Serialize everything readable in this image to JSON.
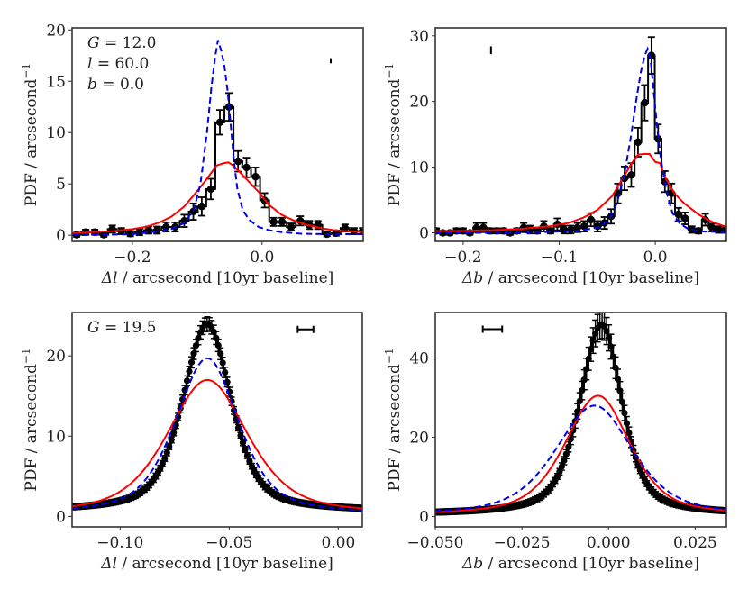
{
  "chart_data": [
    {
      "id": "top-left",
      "type": "line",
      "xlabel_sym": "Δl",
      "xlabel_rest": " / arcsecond [10yr baseline]",
      "ylabel": "PDF / arcsecond",
      "ylabel_sup": "−1",
      "xlim": [
        -0.293,
        0.156
      ],
      "ylim": [
        -0.6,
        20.2
      ],
      "xticks": [
        -0.2,
        0.0
      ],
      "xtick_labels": [
        "−0.2",
        "0.0"
      ],
      "yticks": [
        0,
        5,
        10,
        15,
        20
      ],
      "ytick_labels": [
        "0",
        "5",
        "10",
        "15",
        "20"
      ],
      "annotations": [
        {
          "sym": "G",
          "rest": " = 12.0"
        },
        {
          "sym": "l",
          "rest": " = 60.0"
        },
        {
          "sym": "b",
          "rest": " = 0.0"
        }
      ],
      "scale_bar": {
        "orientation": "vertical",
        "x": 0.106,
        "y_center": 17.0,
        "half_length": 0.25
      },
      "series": [
        {
          "name": "data histogram",
          "style": "step-errorbar",
          "color": "#000000",
          "bin_width": 0.0138,
          "x": [
            -0.286,
            -0.272,
            -0.258,
            -0.244,
            -0.231,
            -0.217,
            -0.203,
            -0.189,
            -0.175,
            -0.162,
            -0.148,
            -0.134,
            -0.12,
            -0.106,
            -0.093,
            -0.079,
            -0.065,
            -0.051,
            -0.037,
            -0.024,
            -0.01,
            0.004,
            0.018,
            0.031,
            0.045,
            0.059,
            0.073,
            0.086,
            0.1,
            0.114,
            0.128,
            0.142,
            0.155
          ],
          "y": [
            0.05,
            0.3,
            0.3,
            0.05,
            0.6,
            0.4,
            0.15,
            0.3,
            0.5,
            0.5,
            0.8,
            0.8,
            1.4,
            2.3,
            2.8,
            4.5,
            11.0,
            12.5,
            7.2,
            6.6,
            5.7,
            3.4,
            1.3,
            1.3,
            0.8,
            1.4,
            1.0,
            1.0,
            0.1,
            0.2,
            0.7,
            0.4,
            0.4
          ],
          "err": [
            0.2,
            0.25,
            0.25,
            0.2,
            0.35,
            0.3,
            0.25,
            0.3,
            0.35,
            0.35,
            0.45,
            0.45,
            0.6,
            0.8,
            0.9,
            1.0,
            1.2,
            1.35,
            1.0,
            0.95,
            0.9,
            0.7,
            0.4,
            0.4,
            0.35,
            0.45,
            0.4,
            0.4,
            0.2,
            0.25,
            0.35,
            0.3,
            0.3
          ]
        },
        {
          "name": "model (red)",
          "style": "solid",
          "color": "#ff0000",
          "x": [
            -0.293,
            -0.26,
            -0.23,
            -0.2,
            -0.18,
            -0.16,
            -0.14,
            -0.12,
            -0.1,
            -0.085,
            -0.07,
            -0.06,
            -0.052,
            -0.045,
            -0.035,
            -0.02,
            -0.005,
            0.01,
            0.03,
            0.05,
            0.07,
            0.09,
            0.11,
            0.13,
            0.156
          ],
          "y": [
            0.2,
            0.3,
            0.4,
            0.6,
            0.8,
            1.2,
            1.8,
            2.8,
            4.3,
            5.5,
            6.8,
            7.0,
            7.1,
            6.8,
            6.2,
            5.2,
            4.2,
            3.0,
            2.0,
            1.4,
            1.0,
            0.7,
            0.5,
            0.4,
            0.3
          ]
        },
        {
          "name": "model (blue dashed)",
          "style": "dashed",
          "color": "#0000ee",
          "x": [
            -0.293,
            -0.25,
            -0.2,
            -0.17,
            -0.14,
            -0.12,
            -0.105,
            -0.095,
            -0.085,
            -0.078,
            -0.072,
            -0.068,
            -0.063,
            -0.058,
            -0.053,
            -0.048,
            -0.043,
            -0.038,
            -0.03,
            -0.02,
            -0.005,
            0.01,
            0.03,
            0.06,
            0.1,
            0.156
          ],
          "y": [
            0.0,
            0.05,
            0.1,
            0.3,
            0.6,
            1.2,
            2.5,
            5.0,
            10.0,
            14.5,
            17.5,
            19.0,
            18.0,
            16.5,
            14.0,
            10.5,
            7.0,
            4.5,
            2.5,
            1.5,
            0.8,
            0.5,
            0.3,
            0.15,
            0.1,
            0.1
          ]
        }
      ]
    },
    {
      "id": "top-right",
      "type": "line",
      "xlabel_sym": "Δb",
      "xlabel_rest": " / arcsecond [10yr baseline]",
      "ylabel": "PDF / arcsecond",
      "ylabel_sup": "−1",
      "xlim": [
        -0.229,
        0.074
      ],
      "ylim": [
        -1.3,
        31.2
      ],
      "xticks": [
        -0.2,
        -0.1,
        0.0
      ],
      "xtick_labels": [
        "−0.2",
        "−0.1",
        "0.0"
      ],
      "yticks": [
        0,
        10,
        20,
        30
      ],
      "ytick_labels": [
        "0",
        "10",
        "20",
        "30"
      ],
      "annotations": [],
      "scale_bar": {
        "orientation": "vertical",
        "x": -0.171,
        "y_center": 27.8,
        "half_length": 0.6
      },
      "series": [
        {
          "name": "data histogram",
          "style": "step-errorbar",
          "color": "#000000",
          "bin_width": 0.0069,
          "x": [
            -0.228,
            -0.221,
            -0.214,
            -0.207,
            -0.2,
            -0.193,
            -0.186,
            -0.179,
            -0.172,
            -0.165,
            -0.158,
            -0.151,
            -0.144,
            -0.137,
            -0.13,
            -0.123,
            -0.116,
            -0.109,
            -0.102,
            -0.095,
            -0.088,
            -0.081,
            -0.074,
            -0.067,
            -0.06,
            -0.053,
            -0.046,
            -0.039,
            -0.032,
            -0.025,
            -0.018,
            -0.011,
            -0.004,
            0.003,
            0.01,
            0.017,
            0.024,
            0.031,
            0.038,
            0.045,
            0.052,
            0.059,
            0.066,
            0.073
          ],
          "y": [
            0.3,
            0.0,
            0.0,
            0.3,
            0.3,
            0.0,
            0.8,
            0.8,
            0.3,
            0.3,
            0.3,
            0.0,
            0.3,
            0.8,
            0.5,
            0.3,
            1.0,
            0.3,
            1.3,
            0.5,
            0.5,
            0.8,
            1.0,
            2.0,
            1.0,
            1.5,
            2.5,
            6.0,
            8.3,
            8.8,
            13.8,
            19.8,
            27.0,
            14.3,
            7.8,
            6.0,
            2.8,
            2.2,
            0.5,
            0.3,
            2.0,
            0.8,
            0.5,
            0.5
          ],
          "err": [
            0.4,
            0.3,
            0.3,
            0.4,
            0.4,
            0.3,
            0.7,
            0.7,
            0.4,
            0.4,
            0.4,
            0.3,
            0.4,
            0.7,
            0.6,
            0.4,
            0.8,
            0.4,
            0.9,
            0.6,
            0.6,
            0.7,
            0.8,
            1.0,
            0.8,
            0.9,
            1.1,
            1.5,
            1.8,
            1.8,
            2.2,
            2.7,
            2.8,
            2.2,
            1.6,
            1.5,
            1.0,
            0.9,
            0.5,
            0.4,
            0.9,
            0.6,
            0.5,
            0.5
          ]
        },
        {
          "name": "model (red)",
          "style": "solid",
          "color": "#ff0000",
          "x": [
            -0.229,
            -0.2,
            -0.17,
            -0.14,
            -0.11,
            -0.09,
            -0.075,
            -0.06,
            -0.045,
            -0.035,
            -0.025,
            -0.018,
            -0.012,
            -0.006,
            0.0,
            0.005,
            0.01,
            0.02,
            0.03,
            0.045,
            0.06,
            0.074
          ],
          "y": [
            0.3,
            0.3,
            0.4,
            0.6,
            1.0,
            1.5,
            2.3,
            3.5,
            5.6,
            8.0,
            10.5,
            11.9,
            12.0,
            12.0,
            10.8,
            10.6,
            8.5,
            6.0,
            4.5,
            2.8,
            1.6,
            0.9
          ],
          "note": "approximate trace"
        },
        {
          "name": "model (blue dashed)",
          "style": "dashed",
          "color": "#0000ee",
          "x": [
            -0.229,
            -0.18,
            -0.12,
            -0.08,
            -0.06,
            -0.048,
            -0.04,
            -0.032,
            -0.025,
            -0.02,
            -0.015,
            -0.011,
            -0.008,
            -0.005,
            -0.002,
            0.002,
            0.006,
            0.012,
            0.018,
            0.025,
            0.035,
            0.05,
            0.074
          ],
          "y": [
            0.0,
            0.0,
            0.1,
            0.3,
            0.8,
            2.0,
            4.5,
            9.0,
            15.0,
            20.0,
            24.5,
            27.0,
            28.0,
            26.5,
            22.0,
            16.0,
            11.0,
            6.0,
            3.0,
            1.5,
            0.5,
            0.2,
            0.1
          ]
        }
      ]
    },
    {
      "id": "bottom-left",
      "type": "line",
      "xlabel_sym": "Δl",
      "xlabel_rest": " / arcsecond [10yr baseline]",
      "ylabel": "PDF / arcsecond",
      "ylabel_sup": "−1",
      "xlim": [
        -0.122,
        0.011
      ],
      "ylim": [
        -1.3,
        25.4
      ],
      "xticks": [
        -0.1,
        -0.05,
        0.0
      ],
      "xtick_labels": [
        "−0.10",
        "−0.05",
        "0.00"
      ],
      "yticks": [
        0,
        10,
        20
      ],
      "ytick_labels": [
        "0",
        "10",
        "20"
      ],
      "annotations": [
        {
          "sym": "G",
          "rest": " = 19.5"
        }
      ],
      "scale_bar": {
        "orientation": "horizontal",
        "x_center": -0.015,
        "y": 23.3,
        "half_length": 0.0036
      },
      "series": [
        {
          "name": "data points",
          "style": "dense-errorbar",
          "color": "#000000",
          "profile": {
            "center": -0.06,
            "peak": 24.0,
            "gamma_left": 0.0135,
            "gamma_right": 0.013,
            "tail": 0.6
          },
          "n_points": 130,
          "err_frac": 0.035
        },
        {
          "name": "model (red)",
          "style": "solid",
          "color": "#ff0000",
          "profile": {
            "center": -0.06,
            "peak": 17.0,
            "gamma_left": 0.022,
            "gamma_right": 0.022,
            "tail": 0.2
          }
        },
        {
          "name": "model (blue dashed)",
          "style": "dashed",
          "color": "#0000ee",
          "profile": {
            "center": -0.06,
            "peak": 19.7,
            "gamma_left": 0.0175,
            "gamma_right": 0.017,
            "tail": 0.2
          }
        }
      ]
    },
    {
      "id": "bottom-right",
      "type": "line",
      "xlabel_sym": "Δb",
      "xlabel_rest": " / arcsecond [10yr baseline]",
      "ylabel": "PDF / arcsecond",
      "ylabel_sup": "−1",
      "xlim": [
        -0.05,
        0.034
      ],
      "ylim": [
        -2.6,
        51.5
      ],
      "xticks": [
        -0.05,
        -0.025,
        0.0,
        0.025
      ],
      "xtick_labels": [
        "−0.050",
        "−0.025",
        "0.000",
        "0.025"
      ],
      "yticks": [
        0,
        20,
        40
      ],
      "ytick_labels": [
        "0",
        "20",
        "40"
      ],
      "annotations": [],
      "scale_bar": {
        "orientation": "horizontal",
        "x_center": -0.0335,
        "y": 47.3,
        "half_length": 0.0028
      },
      "series": [
        {
          "name": "data points",
          "style": "dense-errorbar",
          "color": "#000000",
          "profile": {
            "center": -0.002,
            "peak": 48.5,
            "gamma_left": 0.0075,
            "gamma_right": 0.007,
            "tail": 0.5
          },
          "n_points": 130,
          "err_frac": 0.035
        },
        {
          "name": "model (red)",
          "style": "solid",
          "color": "#ff0000",
          "profile": {
            "center": -0.003,
            "peak": 30.5,
            "gamma_left": 0.0115,
            "gamma_right": 0.011,
            "tail": 0.2
          }
        },
        {
          "name": "model (blue dashed)",
          "style": "dashed",
          "color": "#0000ee",
          "profile": {
            "center": -0.004,
            "peak": 28.0,
            "gamma_left": 0.0135,
            "gamma_right": 0.013,
            "tail": 0.2
          }
        }
      ]
    }
  ]
}
